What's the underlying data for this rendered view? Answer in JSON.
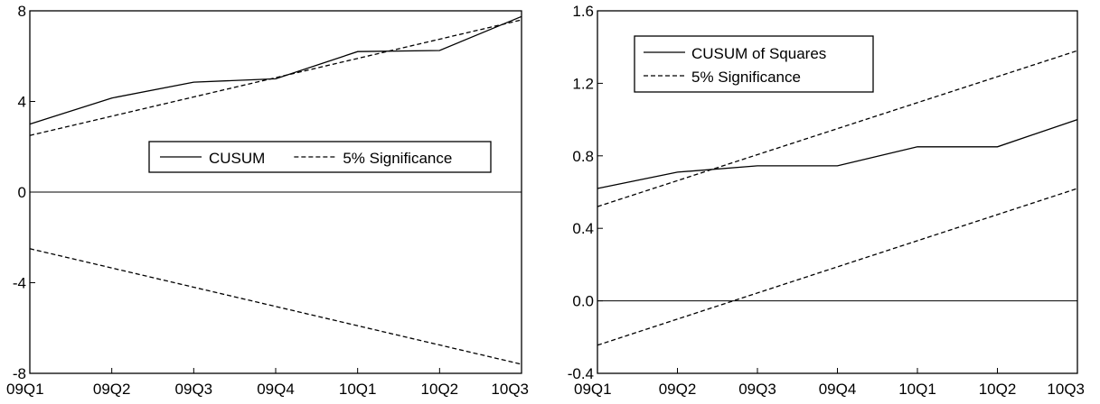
{
  "chart_data": [
    {
      "type": "line",
      "x_categories": [
        "09Q1",
        "09Q2",
        "09Q3",
        "09Q4",
        "10Q1",
        "10Q2",
        "10Q3"
      ],
      "ylim": [
        -8,
        8
      ],
      "yticks": [
        "-8",
        "-4",
        "0",
        "4",
        "8"
      ],
      "ytick_values": [
        -8,
        -4,
        0,
        4,
        8
      ],
      "zero_line": 0,
      "legend_position": "middle-right",
      "legend_layout": "horizontal",
      "series": [
        {
          "name": "CUSUM",
          "style": "solid",
          "points": [
            [
              0,
              3.0
            ],
            [
              1,
              4.15
            ],
            [
              2,
              4.85
            ],
            [
              3,
              5.0
            ],
            [
              4,
              6.2
            ],
            [
              5,
              6.25
            ],
            [
              6,
              7.75
            ]
          ]
        },
        {
          "name": "5% Significance",
          "style": "dashed",
          "points": [
            [
              0,
              2.5
            ],
            [
              6,
              7.6
            ]
          ]
        },
        {
          "name": "",
          "style": "dashed",
          "points": [
            [
              0,
              -2.5
            ],
            [
              6,
              -7.6
            ]
          ]
        }
      ]
    },
    {
      "type": "line",
      "x_categories": [
        "09Q1",
        "09Q2",
        "09Q3",
        "09Q4",
        "10Q1",
        "10Q2",
        "10Q3"
      ],
      "ylim": [
        -0.4,
        1.6
      ],
      "yticks": [
        "-0.4",
        "0.0",
        "0.4",
        "0.8",
        "1.2",
        "1.6"
      ],
      "ytick_values": [
        -0.4,
        0.0,
        0.4,
        0.8,
        1.2,
        1.6
      ],
      "zero_line": 0,
      "legend_position": "top-left",
      "legend_layout": "vertical",
      "series": [
        {
          "name": "CUSUM of Squares",
          "style": "solid",
          "points": [
            [
              0,
              0.62
            ],
            [
              1,
              0.71
            ],
            [
              2,
              0.745
            ],
            [
              3,
              0.745
            ],
            [
              4,
              0.85
            ],
            [
              5,
              0.85
            ],
            [
              6,
              1.0
            ]
          ]
        },
        {
          "name": "5% Significance",
          "style": "dashed",
          "points": [
            [
              0,
              0.52
            ],
            [
              6,
              1.38
            ]
          ]
        },
        {
          "name": "",
          "style": "dashed",
          "points": [
            [
              0,
              -0.245
            ],
            [
              6,
              0.62
            ]
          ]
        }
      ]
    }
  ]
}
